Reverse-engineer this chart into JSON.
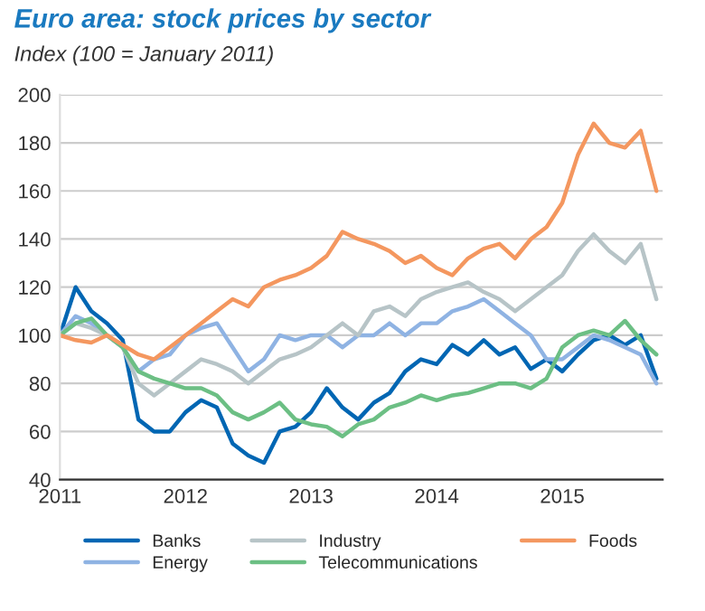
{
  "chart_data": {
    "type": "line",
    "title": "Euro area: stock prices by sector",
    "subtitle": "Index (100 = January 2011)",
    "x": [
      2011,
      2011.125,
      2011.25,
      2011.375,
      2011.5,
      2011.625,
      2011.75,
      2011.875,
      2012,
      2012.125,
      2012.25,
      2012.375,
      2012.5,
      2012.625,
      2012.75,
      2012.875,
      2013,
      2013.125,
      2013.25,
      2013.375,
      2013.5,
      2013.625,
      2013.75,
      2013.875,
      2014,
      2014.125,
      2014.25,
      2014.375,
      2014.5,
      2014.625,
      2014.75,
      2014.875,
      2015,
      2015.125,
      2015.25,
      2015.375,
      2015.5,
      2015.625,
      2015.75
    ],
    "series": [
      {
        "name": "Banks",
        "color": "#0066b3",
        "values": [
          100,
          120,
          110,
          105,
          98,
          65,
          60,
          60,
          68,
          73,
          70,
          55,
          50,
          47,
          60,
          62,
          68,
          78,
          70,
          65,
          72,
          76,
          85,
          90,
          88,
          96,
          92,
          98,
          92,
          95,
          86,
          90,
          85,
          92,
          98,
          100,
          96,
          100,
          82
        ]
      },
      {
        "name": "Energy",
        "color": "#8fb3e3",
        "values": [
          100,
          108,
          105,
          100,
          95,
          85,
          90,
          92,
          100,
          103,
          105,
          95,
          85,
          90,
          100,
          98,
          100,
          100,
          95,
          100,
          100,
          105,
          100,
          105,
          105,
          110,
          112,
          115,
          110,
          105,
          100,
          90,
          90,
          95,
          100,
          98,
          95,
          92,
          80
        ]
      },
      {
        "name": "Industry",
        "color": "#b7c4c7",
        "values": [
          100,
          105,
          103,
          100,
          95,
          80,
          75,
          80,
          85,
          90,
          88,
          85,
          80,
          85,
          90,
          92,
          95,
          100,
          105,
          100,
          110,
          112,
          108,
          115,
          118,
          120,
          122,
          118,
          115,
          110,
          115,
          120,
          125,
          135,
          142,
          135,
          130,
          138,
          115
        ]
      },
      {
        "name": "Telecommunications",
        "color": "#6cbf84",
        "values": [
          100,
          105,
          107,
          100,
          95,
          85,
          82,
          80,
          78,
          78,
          75,
          68,
          65,
          68,
          72,
          65,
          63,
          62,
          58,
          63,
          65,
          70,
          72,
          75,
          73,
          75,
          76,
          78,
          80,
          80,
          78,
          82,
          95,
          100,
          102,
          100,
          106,
          98,
          92
        ]
      },
      {
        "name": "Foods",
        "color": "#f4975f",
        "values": [
          100,
          98,
          97,
          100,
          96,
          92,
          90,
          95,
          100,
          105,
          110,
          115,
          112,
          120,
          123,
          125,
          128,
          133,
          143,
          140,
          138,
          135,
          130,
          133,
          128,
          125,
          132,
          136,
          138,
          132,
          140,
          145,
          155,
          175,
          188,
          180,
          178,
          185,
          160
        ]
      }
    ],
    "xlim": [
      2011,
      2015.8
    ],
    "xticks": [
      2011,
      2012,
      2013,
      2014,
      2015
    ],
    "ylim": [
      40,
      200
    ],
    "yticks": [
      40,
      60,
      80,
      100,
      120,
      140,
      160,
      180,
      200
    ],
    "grid": "y",
    "legend": "bottom",
    "line_style": "solid",
    "marker": "none"
  }
}
